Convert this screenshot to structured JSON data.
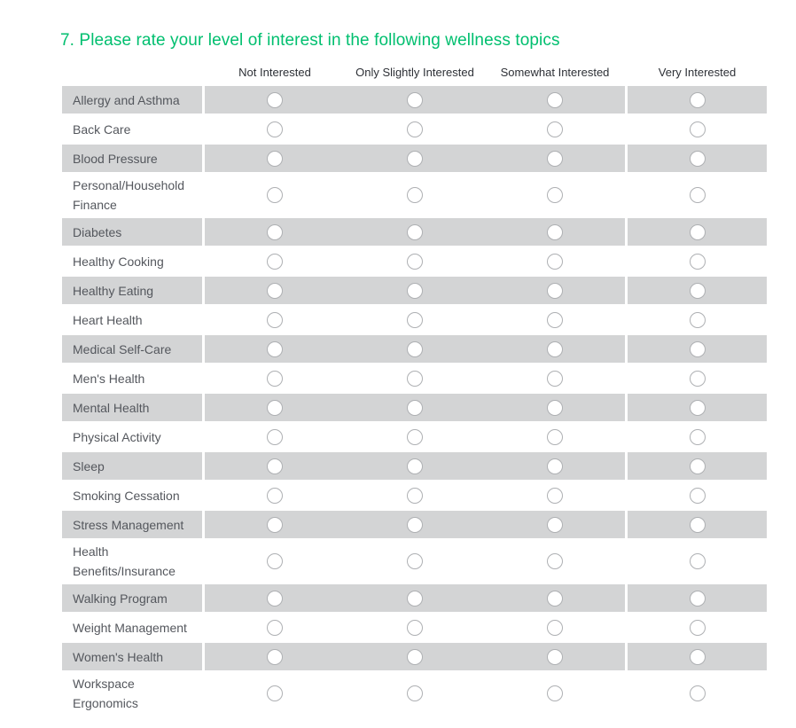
{
  "question": {
    "title": "7. Please rate your level of interest in the following wellness topics"
  },
  "matrix": {
    "columns": [
      "Not Interested",
      "Only Slightly Interested",
      "Somewhat Interested",
      "Very Interested"
    ],
    "rows": [
      {
        "label": "Allergy and Asthma",
        "selected": null
      },
      {
        "label": "Back Care",
        "selected": null
      },
      {
        "label": "Blood Pressure",
        "selected": null
      },
      {
        "label": "Personal/⁠Household Finance",
        "selected": null
      },
      {
        "label": "Diabetes",
        "selected": null
      },
      {
        "label": "Healthy Cooking",
        "selected": null
      },
      {
        "label": "Healthy Eating",
        "selected": null
      },
      {
        "label": "Heart Health",
        "selected": null
      },
      {
        "label": "Medical Self-Care",
        "selected": null
      },
      {
        "label": "Men's Health",
        "selected": null
      },
      {
        "label": "Mental Health",
        "selected": null
      },
      {
        "label": "Physical Activity",
        "selected": null
      },
      {
        "label": "Sleep",
        "selected": null
      },
      {
        "label": "Smoking Cessation",
        "selected": null
      },
      {
        "label": "Stress Management",
        "selected": null
      },
      {
        "label": "Health Benefits/⁠Insurance",
        "selected": null
      },
      {
        "label": "Walking Program",
        "selected": null
      },
      {
        "label": "Weight Management",
        "selected": null
      },
      {
        "label": "Women's Health",
        "selected": null
      },
      {
        "label": "Workspace Ergonomics",
        "selected": null
      }
    ]
  },
  "colors": {
    "title_green": "#00bf6f",
    "row_shaded": "#d3d4d5",
    "row_unshaded": "#ffffff",
    "label_text": "#54575d",
    "header_text": "#2d3036",
    "radio_border": "#aeb0b3"
  }
}
